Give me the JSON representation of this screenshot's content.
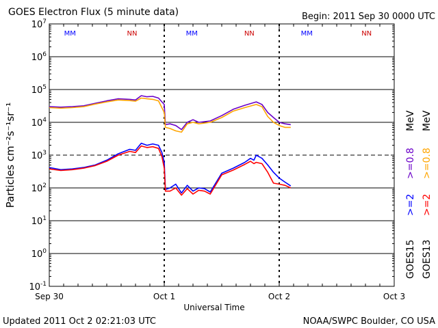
{
  "header": {
    "title": "GOES Electron Flux (5 minute data)",
    "begin": "Begin: 2011 Sep 30 0000 UTC"
  },
  "footer": {
    "updated": "Updated 2011 Oct  2 02:21:03 UTC",
    "source": "NOAA/SWPC Boulder, CO USA"
  },
  "colors": {
    "goes15_high": "#0000ff",
    "goes13_high": "#ff0000",
    "goes15_low": "#6a00c8",
    "goes13_low": "#ffa500",
    "mm_color": "#0000ff",
    "nn_color": "#cc0000"
  },
  "chart_data": {
    "type": "line",
    "title": "GOES Electron Flux (5 minute data)",
    "xlabel": "Universal Time",
    "ylabel": "Particles cm⁻²s⁻¹sr⁻¹",
    "x_ticks": [
      "Sep 30",
      "Oct 1",
      "Oct 2",
      "Oct 3"
    ],
    "x_range_days": [
      0,
      3
    ],
    "y_scale": "log",
    "ylim": [
      0.1,
      10000000
    ],
    "y_ticks": [
      {
        "base": "10",
        "exp": "-1",
        "value": 0.1
      },
      {
        "base": "10",
        "exp": "0",
        "value": 1
      },
      {
        "base": "10",
        "exp": "1",
        "value": 10
      },
      {
        "base": "10",
        "exp": "2",
        "value": 100
      },
      {
        "base": "10",
        "exp": "3",
        "value": 1000
      },
      {
        "base": "10",
        "exp": "4",
        "value": 10000
      },
      {
        "base": "10",
        "exp": "5",
        "value": 100000
      },
      {
        "base": "10",
        "exp": "6",
        "value": 1000000
      },
      {
        "base": "10",
        "exp": "7",
        "value": 10000000
      }
    ],
    "threshold": {
      "value": 1000,
      "style": "dashed"
    },
    "markers": [
      {
        "label": "MM",
        "x": 0.18
      },
      {
        "label": "NN",
        "x": 0.72
      },
      {
        "label": "MM",
        "x": 1.24
      },
      {
        "label": "NN",
        "x": 1.74
      },
      {
        "label": "MM",
        "x": 2.24
      },
      {
        "label": "NN",
        "x": 2.76
      }
    ],
    "right_labels": [
      {
        "sat": "GOES15",
        "energy": ">=2",
        "unit": "MeV",
        "energy_low": ">=0.8",
        "unit_low": "MeV"
      },
      {
        "sat": "GOES13",
        "energy": ">=2",
        "unit": "MeV",
        "energy_low": ">=0.8",
        "unit_low": "MeV"
      }
    ],
    "series": [
      {
        "name": "GOES15 >=2 MeV",
        "color_key": "goes15_high",
        "x": [
          0,
          0.1,
          0.2,
          0.3,
          0.4,
          0.5,
          0.6,
          0.7,
          0.75,
          0.8,
          0.85,
          0.9,
          0.95,
          0.98,
          1.0,
          1.01,
          1.05,
          1.1,
          1.15,
          1.2,
          1.25,
          1.3,
          1.35,
          1.4,
          1.5,
          1.6,
          1.7,
          1.75,
          1.78,
          1.8,
          1.85,
          1.9,
          1.95,
          2.0,
          2.05,
          2.1
        ],
        "y": [
          420,
          360,
          380,
          420,
          500,
          700,
          1100,
          1500,
          1400,
          2300,
          2000,
          2200,
          2000,
          1200,
          600,
          90,
          100,
          130,
          70,
          120,
          80,
          100,
          95,
          75,
          280,
          400,
          600,
          800,
          700,
          1000,
          800,
          500,
          300,
          200,
          150,
          115
        ]
      },
      {
        "name": "GOES13 >=2 MeV",
        "color_key": "goes13_high",
        "x": [
          0,
          0.1,
          0.2,
          0.3,
          0.4,
          0.5,
          0.6,
          0.7,
          0.75,
          0.8,
          0.85,
          0.9,
          0.95,
          0.98,
          1.0,
          1.01,
          1.05,
          1.1,
          1.15,
          1.2,
          1.25,
          1.3,
          1.35,
          1.4,
          1.5,
          1.6,
          1.7,
          1.75,
          1.78,
          1.8,
          1.85,
          1.9,
          1.95,
          2.0,
          2.05,
          2.1
        ],
        "y": [
          380,
          340,
          360,
          400,
          480,
          650,
          1000,
          1300,
          1200,
          1900,
          1700,
          1800,
          1600,
          900,
          400,
          80,
          80,
          100,
          60,
          95,
          65,
          85,
          80,
          65,
          250,
          350,
          520,
          650,
          550,
          600,
          550,
          300,
          140,
          130,
          120,
          100
        ]
      },
      {
        "name": "GOES15 >=0.8 MeV",
        "color_key": "goes15_low",
        "x": [
          0,
          0.1,
          0.2,
          0.3,
          0.4,
          0.5,
          0.6,
          0.7,
          0.75,
          0.8,
          0.85,
          0.9,
          0.95,
          1.0,
          1.01,
          1.05,
          1.1,
          1.15,
          1.2,
          1.25,
          1.3,
          1.4,
          1.5,
          1.6,
          1.7,
          1.8,
          1.85,
          1.9,
          1.95,
          2.0,
          2.05,
          2.1
        ],
        "y": [
          30000,
          29000,
          30000,
          32000,
          38000,
          45000,
          52000,
          50000,
          48000,
          65000,
          60000,
          62000,
          55000,
          35000,
          8500,
          9000,
          8000,
          6000,
          10000,
          12000,
          10000,
          11000,
          16000,
          25000,
          33000,
          42000,
          35000,
          20000,
          14000,
          10000,
          9000,
          8500
        ]
      },
      {
        "name": "GOES13 >=0.8 MeV",
        "color_key": "goes13_low",
        "x": [
          0,
          0.1,
          0.2,
          0.3,
          0.4,
          0.5,
          0.6,
          0.7,
          0.75,
          0.8,
          0.85,
          0.9,
          0.95,
          1.0,
          1.01,
          1.05,
          1.1,
          1.15,
          1.2,
          1.25,
          1.3,
          1.4,
          1.5,
          1.6,
          1.7,
          1.8,
          1.85,
          1.9,
          1.95,
          2.0,
          2.05,
          2.1
        ],
        "y": [
          28000,
          27000,
          28000,
          30000,
          36000,
          42000,
          48000,
          46000,
          44000,
          55000,
          52000,
          50000,
          45000,
          20000,
          7000,
          6500,
          5500,
          5000,
          9000,
          10000,
          9000,
          10000,
          14000,
          22000,
          28000,
          35000,
          30000,
          15000,
          10000,
          8000,
          7000,
          7000
        ]
      }
    ]
  }
}
